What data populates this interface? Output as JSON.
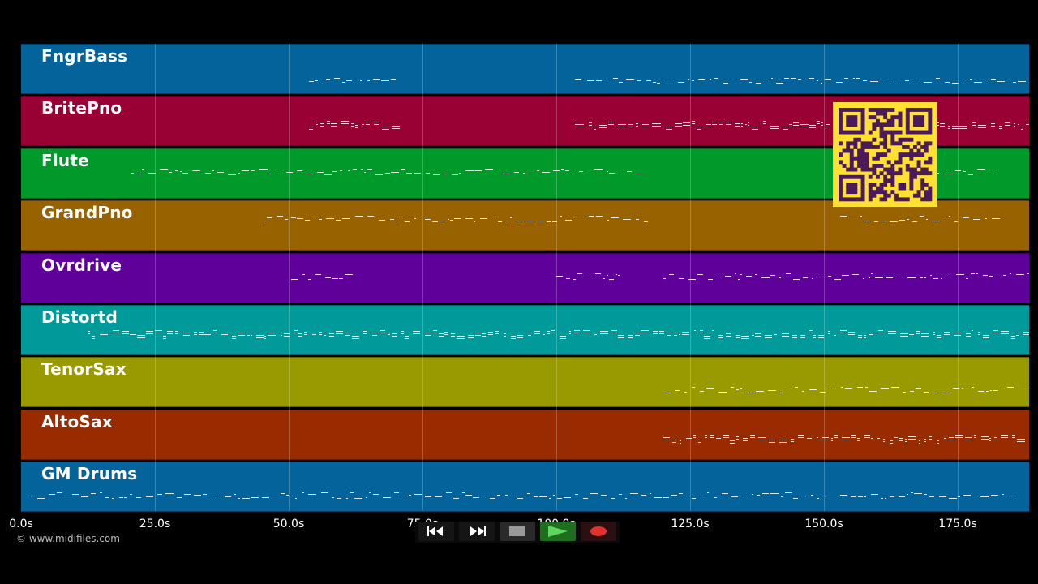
{
  "tracks": [
    {
      "name": "FngrBass",
      "color": "#03639a"
    },
    {
      "name": "BritePno",
      "color": "#990033"
    },
    {
      "name": "Flute",
      "color": "#009a2b"
    },
    {
      "name": "GrandPno",
      "color": "#996200"
    },
    {
      "name": "Ovrdrive",
      "color": "#5e0099"
    },
    {
      "name": "Distortd",
      "color": "#009a9a"
    },
    {
      "name": "TenorSax",
      "color": "#999900"
    },
    {
      "name": "AltoSax",
      "color": "#992b00"
    },
    {
      "name": "GM Drums",
      "color": "#03639a"
    }
  ],
  "timeline": {
    "ticks": [
      "0.0s",
      "25.0s",
      "50.0s",
      "75.0s",
      "100.0s",
      "125.0s",
      "150.0s",
      "175.0s"
    ]
  },
  "copyright": "© www.midifiles.com",
  "transport": {
    "rewind_icon": "rewind-icon",
    "fast_forward_icon": "fast-forward-icon",
    "stop_icon": "stop-icon",
    "play_icon": "play-icon",
    "record_icon": "record-icon",
    "play_color": "#1e6e1e",
    "record_color": "#e03030"
  },
  "overlay": {
    "icon": "qr-code-icon",
    "color": "#ffe033"
  }
}
